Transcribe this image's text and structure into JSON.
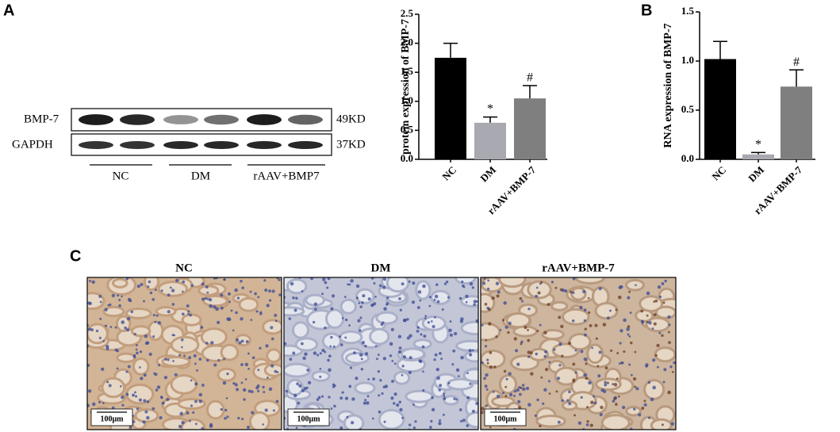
{
  "panel_labels": [
    "A",
    "B",
    "C"
  ],
  "blot": {
    "rows": [
      "BMP-7",
      "GAPDH"
    ],
    "sizes": [
      "49KD",
      "37KD"
    ],
    "groups": [
      "NC",
      "DM",
      "rAAV+BMP7"
    ]
  },
  "chart_data": [
    {
      "type": "bar",
      "y_label": "protein expression of BMP-7",
      "categories": [
        "NC",
        "DM",
        "rAAV+BMP-7"
      ],
      "values": [
        1.75,
        0.63,
        1.05
      ],
      "errors": [
        0.25,
        0.1,
        0.22
      ],
      "significance": [
        null,
        "*",
        "#"
      ],
      "colors": [
        "#000000",
        "#a9a9b2",
        "#7f7f7f"
      ],
      "ylim": [
        0,
        2.5
      ],
      "yticks": [
        {
          "value": 0,
          "label": "0.0"
        },
        0.5,
        {
          "value": 1,
          "label": "1.0"
        },
        1.5,
        {
          "value": 2,
          "label": "2.0"
        },
        2.5
      ]
    },
    {
      "type": "bar",
      "y_label": "RNA expression of BMP-7",
      "categories": [
        "NC",
        "DM",
        "rAAV+BMP-7"
      ],
      "values": [
        1.02,
        0.05,
        0.74
      ],
      "errors": [
        0.18,
        0.02,
        0.17
      ],
      "significance": [
        null,
        "*",
        "#"
      ],
      "colors": [
        "#000000",
        "#a9a9b2",
        "#7f7f7f"
      ],
      "ylim": [
        0,
        1.5
      ],
      "yticks": [
        {
          "value": 0,
          "label": "0.0"
        },
        0.5,
        {
          "value": 1,
          "label": "1.0"
        },
        1.5
      ]
    }
  ],
  "histology": {
    "panels": [
      "NC",
      "DM",
      "rAAV+BMP-7"
    ],
    "scale_bar": "100μm"
  }
}
